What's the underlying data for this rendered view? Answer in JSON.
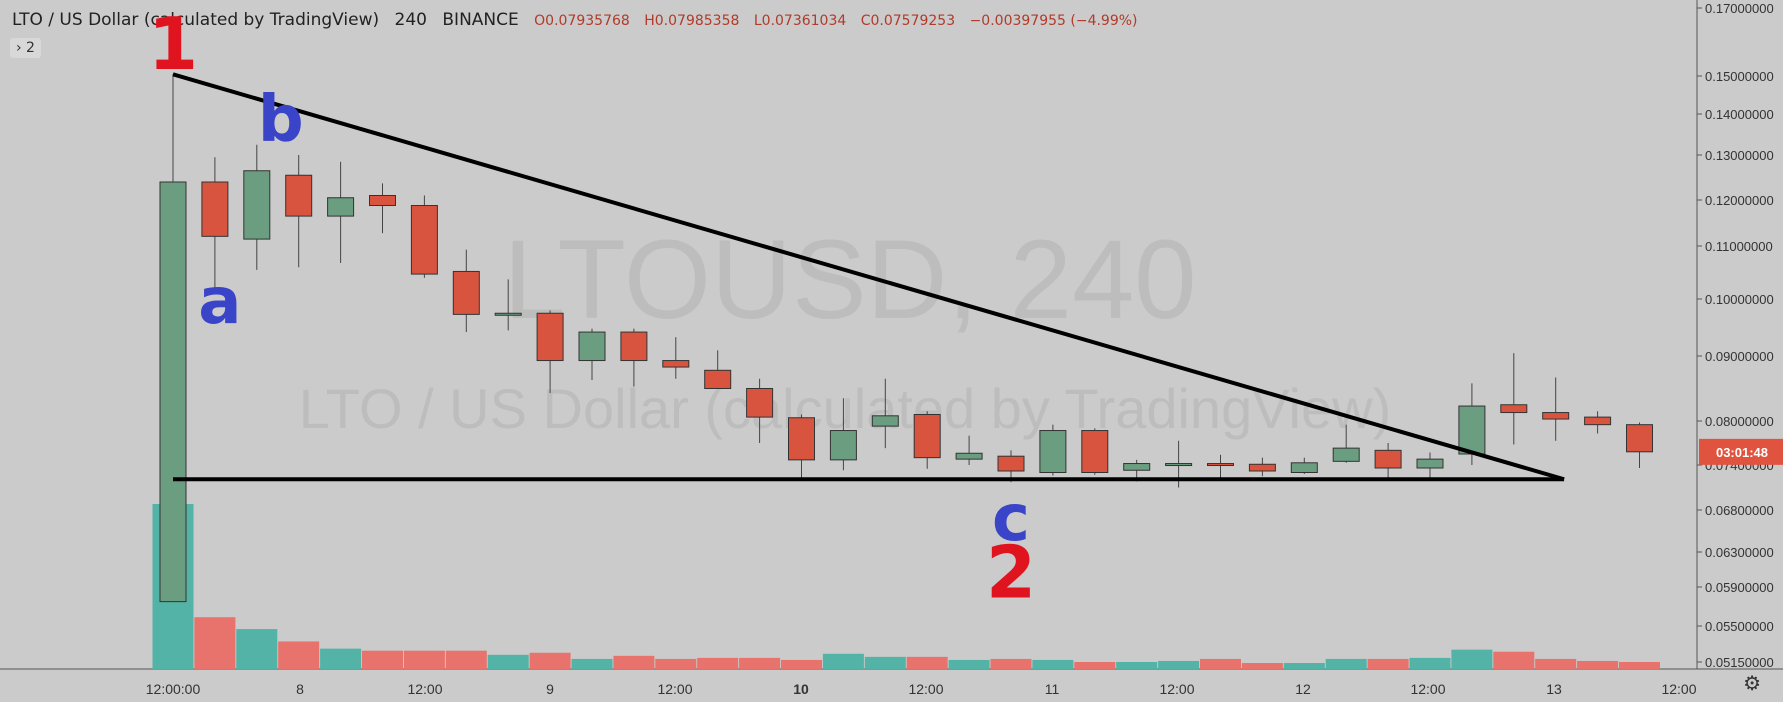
{
  "header": {
    "symbol_name": "LTO / US Dollar (calculated by TradingView)",
    "interval": "240",
    "exchange": "BINANCE",
    "open": "O0.07935768",
    "high": "H0.07985358",
    "low": "L0.07361034",
    "close": "C0.07579253",
    "change": "−0.00397955 (−4.99%)",
    "legend_toggle": "› 2"
  },
  "watermark": {
    "ticker": "LTOUSD, 240",
    "description": "LTO / US Dollar (calculated by TradingView)"
  },
  "countdown": "03:01:48",
  "annotations": {
    "one": "1",
    "two": "2",
    "a": "a",
    "b": "b",
    "c": "c"
  },
  "icons": {
    "settings": "gear-icon"
  },
  "colors": {
    "up": "#6b9d80",
    "down": "#d9543f",
    "vol_up": "#53b3a6",
    "vol_down": "#e8736c",
    "background": "#cbcbcb"
  },
  "chart_data": {
    "type": "candlestick",
    "price_scale_ticks": [
      "0.17000000",
      "0.15000000",
      "0.14000000",
      "0.13000000",
      "0.12000000",
      "0.11000000",
      "0.10000000",
      "0.09000000",
      "0.08000000",
      "0.07400000",
      "0.06800000",
      "0.06300000",
      "0.05900000",
      "0.05500000",
      "0.05150000"
    ],
    "time_labels": [
      "12:00:00",
      "8",
      "12:00",
      "9",
      "12:00",
      "10",
      "12:00",
      "11",
      "12:00",
      "12",
      "12:00",
      "13",
      "12:00"
    ],
    "candles": [
      {
        "o": 0.0575,
        "h": 0.1505,
        "l": 0.0575,
        "c": 0.124,
        "v": 0.0688
      },
      {
        "o": 0.124,
        "h": 0.1295,
        "l": 0.1013,
        "c": 0.1121,
        "v": 0.0559
      },
      {
        "o": 0.1115,
        "h": 0.1325,
        "l": 0.1055,
        "c": 0.1265,
        "v": 0.0547
      },
      {
        "o": 0.1255,
        "h": 0.13,
        "l": 0.106,
        "c": 0.1165,
        "v": 0.0535
      },
      {
        "o": 0.1165,
        "h": 0.1285,
        "l": 0.1068,
        "c": 0.1205,
        "v": 0.0528
      },
      {
        "o": 0.121,
        "h": 0.1237,
        "l": 0.1128,
        "c": 0.1188,
        "v": 0.0526
      },
      {
        "o": 0.1188,
        "h": 0.121,
        "l": 0.104,
        "c": 0.1047,
        "v": 0.0526
      },
      {
        "o": 0.1052,
        "h": 0.1093,
        "l": 0.0942,
        "c": 0.0973,
        "v": 0.0526
      },
      {
        "o": 0.0973,
        "h": 0.1037,
        "l": 0.0945,
        "c": 0.0975,
        "v": 0.0522
      },
      {
        "o": 0.0975,
        "h": 0.098,
        "l": 0.0843,
        "c": 0.0893,
        "v": 0.0524
      },
      {
        "o": 0.0893,
        "h": 0.0948,
        "l": 0.0863,
        "c": 0.0942,
        "v": 0.0518
      },
      {
        "o": 0.0942,
        "h": 0.0948,
        "l": 0.0853,
        "c": 0.0893,
        "v": 0.0521
      },
      {
        "o": 0.0893,
        "h": 0.0933,
        "l": 0.0865,
        "c": 0.0883,
        "v": 0.0518
      },
      {
        "o": 0.0878,
        "h": 0.091,
        "l": 0.085,
        "c": 0.085,
        "v": 0.0519
      },
      {
        "o": 0.085,
        "h": 0.0865,
        "l": 0.077,
        "c": 0.0806,
        "v": 0.0519
      },
      {
        "o": 0.0805,
        "h": 0.081,
        "l": 0.0723,
        "c": 0.0747,
        "v": 0.0517
      },
      {
        "o": 0.0747,
        "h": 0.0835,
        "l": 0.0733,
        "c": 0.0787,
        "v": 0.0523
      },
      {
        "o": 0.0793,
        "h": 0.0865,
        "l": 0.0763,
        "c": 0.0808,
        "v": 0.052
      },
      {
        "o": 0.081,
        "h": 0.0815,
        "l": 0.0735,
        "c": 0.075,
        "v": 0.052
      },
      {
        "o": 0.0748,
        "h": 0.078,
        "l": 0.074,
        "c": 0.0756,
        "v": 0.0517
      },
      {
        "o": 0.0752,
        "h": 0.076,
        "l": 0.0717,
        "c": 0.0732,
        "v": 0.0518
      },
      {
        "o": 0.073,
        "h": 0.0795,
        "l": 0.0726,
        "c": 0.0787,
        "v": 0.0517
      },
      {
        "o": 0.0787,
        "h": 0.079,
        "l": 0.0727,
        "c": 0.073,
        "v": 0.0515
      },
      {
        "o": 0.0733,
        "h": 0.0747,
        "l": 0.0718,
        "c": 0.0742,
        "v": 0.0515
      },
      {
        "o": 0.0742,
        "h": 0.0773,
        "l": 0.071,
        "c": 0.0742,
        "v": 0.0516
      },
      {
        "o": 0.0742,
        "h": 0.0754,
        "l": 0.0719,
        "c": 0.074,
        "v": 0.0518
      },
      {
        "o": 0.0741,
        "h": 0.075,
        "l": 0.0725,
        "c": 0.0732,
        "v": 0.0514
      },
      {
        "o": 0.073,
        "h": 0.075,
        "l": 0.0728,
        "c": 0.0743,
        "v": 0.0514
      },
      {
        "o": 0.0745,
        "h": 0.0795,
        "l": 0.0743,
        "c": 0.0763,
        "v": 0.0518
      },
      {
        "o": 0.076,
        "h": 0.077,
        "l": 0.0719,
        "c": 0.0736,
        "v": 0.0518
      },
      {
        "o": 0.0736,
        "h": 0.0757,
        "l": 0.0723,
        "c": 0.0748,
        "v": 0.0519
      },
      {
        "o": 0.0755,
        "h": 0.0858,
        "l": 0.074,
        "c": 0.0823,
        "v": 0.0527
      },
      {
        "o": 0.0825,
        "h": 0.0905,
        "l": 0.0768,
        "c": 0.0813,
        "v": 0.0525
      },
      {
        "o": 0.0813,
        "h": 0.0867,
        "l": 0.0773,
        "c": 0.0803,
        "v": 0.0518
      },
      {
        "o": 0.0806,
        "h": 0.0815,
        "l": 0.0783,
        "c": 0.0795,
        "v": 0.0516
      },
      {
        "o": 0.0795,
        "h": 0.0798,
        "l": 0.0736,
        "c": 0.0758,
        "v": 0.0515
      }
    ],
    "trendlines": [
      {
        "from_candle": 0,
        "from_price": 0.1505,
        "to_candle": 33.2,
        "to_price": 0.0721
      },
      {
        "from_candle": 0,
        "from_price": 0.0721,
        "to_candle": 33.2,
        "to_price": 0.0721
      }
    ],
    "annotation_points": [
      {
        "label": "1",
        "candle": 0,
        "price": 0.158
      },
      {
        "label": "b",
        "candle": 2,
        "price": 0.1383
      },
      {
        "label": "a",
        "candle": 1,
        "price": 0.0993
      },
      {
        "label": "c",
        "candle": 20,
        "price": 0.0668
      },
      {
        "label": "2",
        "candle": 20,
        "price": 0.0601
      }
    ],
    "current_price": 0.07579253
  }
}
